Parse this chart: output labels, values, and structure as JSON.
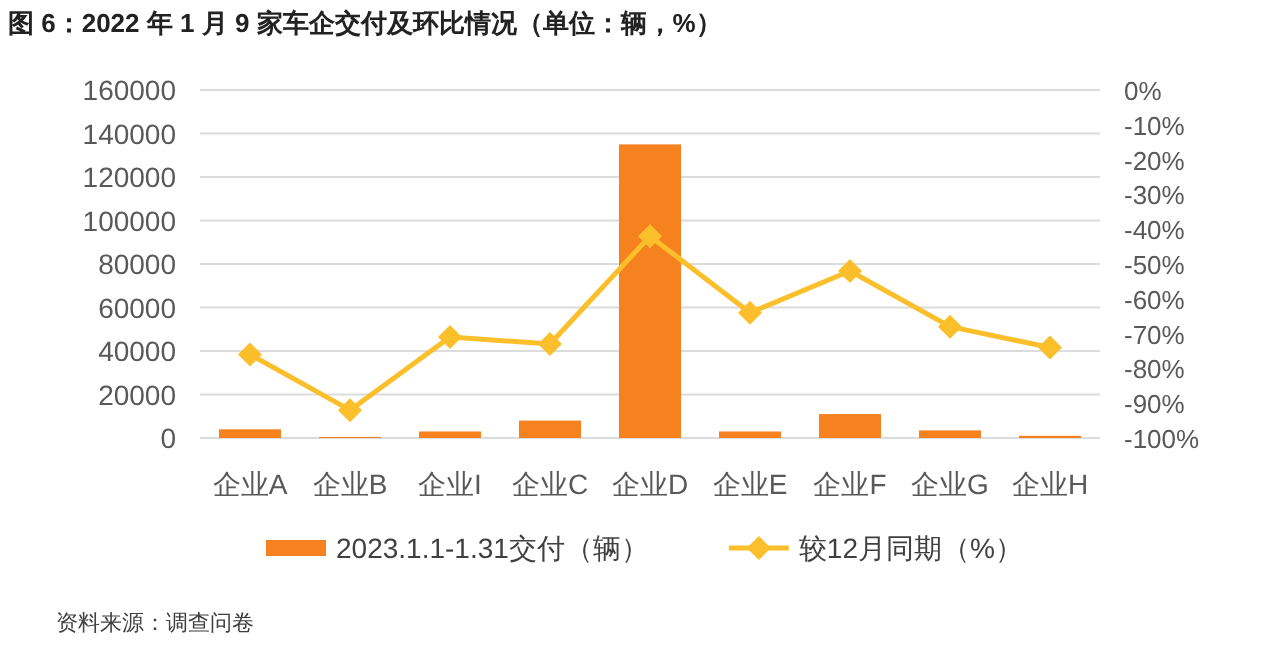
{
  "chart_data": {
    "type": "bar",
    "title": "图 6：2022 年 1 月 9 家车企交付及环比情况（单位：辆，%）",
    "annotations": [
      "资料来源：调查问卷"
    ],
    "categories": [
      "企业A",
      "企业B",
      "企业I",
      "企业C",
      "企业D",
      "企业E",
      "企业F",
      "企业G",
      "企业H"
    ],
    "series": [
      {
        "name": "2023.1.1-1.31交付（辆）",
        "color": "#f5821f",
        "values": [
          4000,
          500,
          3000,
          8000,
          135000,
          3000,
          11000,
          3500,
          1000
        ]
      },
      {
        "name": "较12月同期（%）",
        "type": "line",
        "axis": "y2",
        "marker": "diamond",
        "color": "#fbbf2c",
        "values": [
          -76,
          -92,
          -71,
          -73,
          -42,
          -64,
          -52,
          -68,
          -74
        ]
      }
    ],
    "ylim": [
      0,
      160000
    ],
    "yticks": [
      0,
      20000,
      40000,
      60000,
      80000,
      100000,
      120000,
      140000,
      160000
    ],
    "y2lim": [
      -100,
      0
    ],
    "y2ticks": [
      {
        "value": 0,
        "label": "0%"
      },
      {
        "value": -10,
        "label": "-10%"
      },
      {
        "value": -20,
        "label": "-20%"
      },
      {
        "value": -30,
        "label": "-30%"
      },
      {
        "value": -40,
        "label": "-40%"
      },
      {
        "value": -50,
        "label": "-50%"
      },
      {
        "value": -60,
        "label": "-60%"
      },
      {
        "value": -70,
        "label": "-70%"
      },
      {
        "value": -80,
        "label": "-80%"
      },
      {
        "value": -90,
        "label": "-90%"
      },
      {
        "value": -100,
        "label": "-100%"
      }
    ],
    "grid": "y",
    "legend": "bottom"
  }
}
